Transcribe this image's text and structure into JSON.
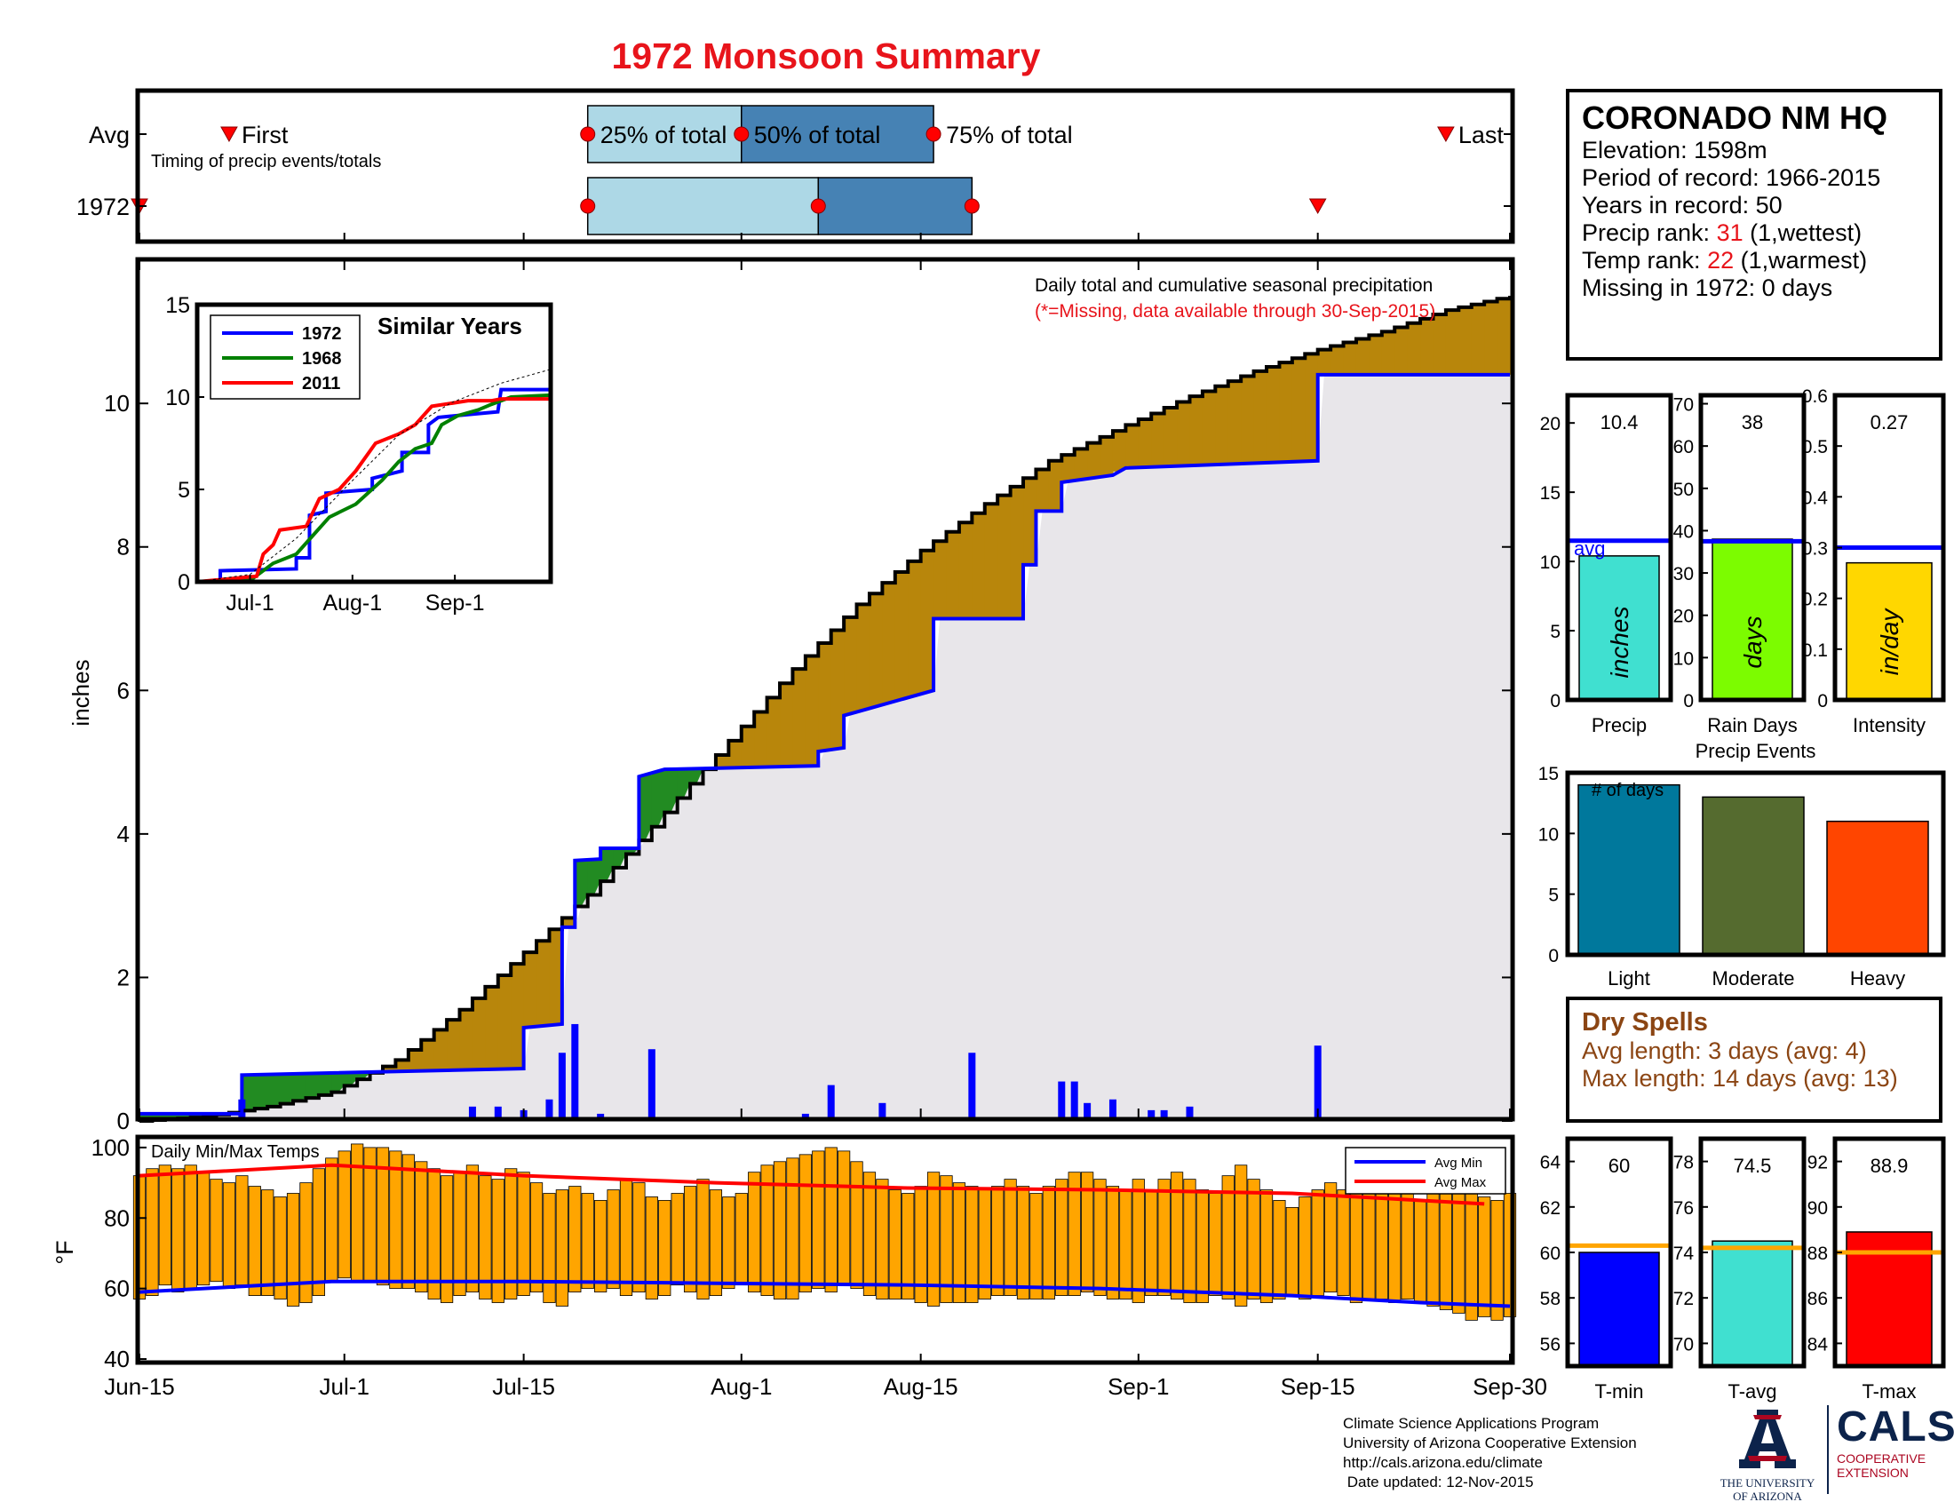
{
  "page": {
    "title": "1972 Monsoon Summary",
    "footer": {
      "line1": "Climate Science Applications Program",
      "line2": "University of Arizona Cooperative Extension",
      "line3": "http://cals.arizona.edu/climate",
      "line4": " Date updated: 12-Nov-2015"
    },
    "logos": {
      "ua_line1": "THE UNIVERSITY",
      "ua_line2": "OF ARIZONA",
      "cals_title": "CALS",
      "cals_line1": "COOPERATIVE",
      "cals_line2": "EXTENSION"
    },
    "colors": {
      "title_red": "#e8141b",
      "above_avg_fill": "#b8860b",
      "below_avg_fill": "#228b22",
      "year_line": "#0000ff",
      "temp_bar": "#ffa500",
      "avg_max_line": "#ff0000",
      "avg_min_line": "#0000ff"
    }
  },
  "station": {
    "name": "CORONADO NM HQ",
    "elevation": "Elevation: 1598m",
    "period": "Period of record: 1966-2015",
    "years": "Years in record: 50",
    "precip_rank_label": "Precip rank: ",
    "precip_rank_value": "31",
    "precip_rank_note": " (1,wettest)",
    "temp_rank_label": "Temp rank: ",
    "temp_rank_value": "22",
    "temp_rank_note": " (1,warmest)",
    "missing": "Missing in 1972: 0 days"
  },
  "dry_spells": {
    "title": "Dry Spells",
    "avg": "Avg length: 3 days (avg: 4)",
    "max": "Max length: 14 days (avg: 13)"
  },
  "chart_data": [
    {
      "id": "timing",
      "type": "bar",
      "rows": [
        "Avg",
        "1972"
      ],
      "label_first": "First",
      "label_last": "Last",
      "label_25": "25% of total",
      "label_50": "50% of total",
      "label_75": "75% of total",
      "note": "Timing of precip events/totals",
      "avg": {
        "first": "2023-06-22",
        "p25": "2023-07-20",
        "p50": "2023-08-01",
        "p75": "2023-08-16",
        "last": "2023-09-25"
      },
      "year": {
        "first": "2023-06-15",
        "p25": "2023-07-20",
        "p50": "2023-08-07",
        "p75": "2023-08-19",
        "last": "2023-09-15"
      }
    },
    {
      "id": "main",
      "type": "area",
      "ylabel": "inches",
      "title": "Daily total and cumulative seasonal precipitation",
      "subtitle": "(*=Missing, data available through 30-Sep-2015)",
      "ylim": [
        0,
        11.5
      ],
      "yticks": [
        0,
        2,
        4,
        6,
        8,
        10
      ],
      "xrange": [
        "2023-06-15",
        "2023-09-30"
      ],
      "xticks": [
        {
          "date": "2023-06-15",
          "label": "Jun-15"
        },
        {
          "date": "2023-07-01",
          "label": "Jul-1"
        },
        {
          "date": "2023-07-15",
          "label": "Jul-15"
        },
        {
          "date": "2023-08-01",
          "label": "Aug-1"
        },
        {
          "date": "2023-08-15",
          "label": "Aug-15"
        },
        {
          "date": "2023-09-01",
          "label": "Sep-1"
        },
        {
          "date": "2023-09-15",
          "label": "Sep-15"
        },
        {
          "date": "2023-09-30",
          "label": "Sep-30"
        }
      ],
      "avg_cumulative": [
        [
          "2023-06-15",
          0.0
        ],
        [
          "2023-06-20",
          0.06
        ],
        [
          "2023-06-25",
          0.2
        ],
        [
          "2023-06-30",
          0.4
        ],
        [
          "2023-07-05",
          0.85
        ],
        [
          "2023-07-10",
          1.55
        ],
        [
          "2023-07-15",
          2.35
        ],
        [
          "2023-07-20",
          3.15
        ],
        [
          "2023-07-25",
          4.1
        ],
        [
          "2023-07-31",
          5.3
        ],
        [
          "2023-08-05",
          6.3
        ],
        [
          "2023-08-10",
          7.2
        ],
        [
          "2023-08-15",
          7.95
        ],
        [
          "2023-08-20",
          8.6
        ],
        [
          "2023-08-25",
          9.2
        ],
        [
          "2023-08-31",
          9.7
        ],
        [
          "2023-09-05",
          10.1
        ],
        [
          "2023-09-10",
          10.45
        ],
        [
          "2023-09-15",
          10.75
        ],
        [
          "2023-09-20",
          11.0
        ],
        [
          "2023-09-25",
          11.3
        ],
        [
          "2023-09-30",
          11.5
        ]
      ],
      "year_cumulative": [
        [
          "2023-06-15",
          0.1
        ],
        [
          "2023-06-23",
          0.1
        ],
        [
          "2023-06-23",
          0.64
        ],
        [
          "2023-07-15",
          0.73
        ],
        [
          "2023-07-15",
          1.3
        ],
        [
          "2023-07-18",
          1.35
        ],
        [
          "2023-07-18",
          2.7
        ],
        [
          "2023-07-19",
          2.7
        ],
        [
          "2023-07-19",
          3.63
        ],
        [
          "2023-07-21",
          3.65
        ],
        [
          "2023-07-21",
          3.8
        ],
        [
          "2023-07-24",
          3.8
        ],
        [
          "2023-07-24",
          4.8
        ],
        [
          "2023-07-26",
          4.9
        ],
        [
          "2023-08-07",
          4.95
        ],
        [
          "2023-08-07",
          5.15
        ],
        [
          "2023-08-09",
          5.2
        ],
        [
          "2023-08-09",
          5.65
        ],
        [
          "2023-08-10",
          5.7
        ],
        [
          "2023-08-16",
          6.0
        ],
        [
          "2023-08-16",
          7.0
        ],
        [
          "2023-08-23",
          7.0
        ],
        [
          "2023-08-23",
          7.75
        ],
        [
          "2023-08-24",
          7.75
        ],
        [
          "2023-08-24",
          8.5
        ],
        [
          "2023-08-26",
          8.5
        ],
        [
          "2023-08-26",
          8.9
        ],
        [
          "2023-08-30",
          9.0
        ],
        [
          "2023-08-31",
          9.1
        ],
        [
          "2023-09-15",
          9.2
        ],
        [
          "2023-09-15",
          10.4
        ],
        [
          "2023-09-30",
          10.4
        ]
      ],
      "daily_bars": [
        [
          "2023-06-23",
          0.3
        ],
        [
          "2023-07-09",
          0.05
        ],
        [
          "2023-07-11",
          0.2
        ],
        [
          "2023-07-12",
          0.05
        ],
        [
          "2023-07-13",
          0.2
        ],
        [
          "2023-07-15",
          0.15
        ],
        [
          "2023-07-17",
          0.3
        ],
        [
          "2023-07-18",
          0.95
        ],
        [
          "2023-07-19",
          1.35
        ],
        [
          "2023-07-21",
          0.1
        ],
        [
          "2023-07-22",
          0.05
        ],
        [
          "2023-07-25",
          1.0
        ],
        [
          "2023-07-27",
          0.05
        ],
        [
          "2023-08-06",
          0.1
        ],
        [
          "2023-08-08",
          0.5
        ],
        [
          "2023-08-11",
          0.05
        ],
        [
          "2023-08-12",
          0.25
        ],
        [
          "2023-08-19",
          0.95
        ],
        [
          "2023-08-26",
          0.55
        ],
        [
          "2023-08-27",
          0.55
        ],
        [
          "2023-08-28",
          0.25
        ],
        [
          "2023-08-30",
          0.3
        ],
        [
          "2023-09-02",
          0.15
        ],
        [
          "2023-09-03",
          0.15
        ],
        [
          "2023-09-05",
          0.2
        ],
        [
          "2023-09-12",
          0.03
        ],
        [
          "2023-09-15",
          1.05
        ]
      ]
    },
    {
      "id": "similar_years",
      "type": "line",
      "title": "Similar Years",
      "ylim": [
        0,
        15
      ],
      "yticks": [
        0,
        5,
        10,
        15
      ],
      "xticks": [
        {
          "date": "2023-07-01",
          "label": "Jul-1"
        },
        {
          "date": "2023-08-01",
          "label": "Aug-1"
        },
        {
          "date": "2023-09-01",
          "label": "Sep-1"
        }
      ],
      "xrange": [
        "2023-06-15",
        "2023-09-30"
      ],
      "series": [
        {
          "name": "1972",
          "color": "#0000ff",
          "points": [
            [
              "2023-06-15",
              0
            ],
            [
              "2023-06-22",
              0
            ],
            [
              "2023-06-22",
              0.6
            ],
            [
              "2023-07-15",
              0.7
            ],
            [
              "2023-07-15",
              1.3
            ],
            [
              "2023-07-19",
              1.3
            ],
            [
              "2023-07-19",
              3.6
            ],
            [
              "2023-07-24",
              3.8
            ],
            [
              "2023-07-24",
              4.8
            ],
            [
              "2023-08-07",
              5.0
            ],
            [
              "2023-08-07",
              5.6
            ],
            [
              "2023-08-16",
              6.0
            ],
            [
              "2023-08-16",
              7.0
            ],
            [
              "2023-08-24",
              7.0
            ],
            [
              "2023-08-24",
              8.5
            ],
            [
              "2023-08-27",
              8.9
            ],
            [
              "2023-09-14",
              9.2
            ],
            [
              "2023-09-15",
              10.4
            ],
            [
              "2023-09-30",
              10.4
            ]
          ]
        },
        {
          "name": "1968",
          "color": "#008000",
          "points": [
            [
              "2023-06-15",
              0
            ],
            [
              "2023-07-02",
              0.2
            ],
            [
              "2023-07-08",
              1.0
            ],
            [
              "2023-07-15",
              1.5
            ],
            [
              "2023-07-20",
              2.5
            ],
            [
              "2023-07-25",
              3.5
            ],
            [
              "2023-08-02",
              4.2
            ],
            [
              "2023-08-10",
              5.5
            ],
            [
              "2023-08-15",
              6.5
            ],
            [
              "2023-08-20",
              7.2
            ],
            [
              "2023-08-25",
              7.5
            ],
            [
              "2023-08-28",
              8.5
            ],
            [
              "2023-09-02",
              9.0
            ],
            [
              "2023-09-08",
              9.3
            ],
            [
              "2023-09-12",
              9.6
            ],
            [
              "2023-09-18",
              10.0
            ],
            [
              "2023-09-30",
              10.1
            ]
          ]
        },
        {
          "name": "2011",
          "color": "#ff0000",
          "points": [
            [
              "2023-06-15",
              0
            ],
            [
              "2023-07-03",
              0.3
            ],
            [
              "2023-07-05",
              1.5
            ],
            [
              "2023-07-08",
              2.0
            ],
            [
              "2023-07-10",
              2.8
            ],
            [
              "2023-07-18",
              3.0
            ],
            [
              "2023-07-22",
              4.5
            ],
            [
              "2023-07-28",
              5.0
            ],
            [
              "2023-08-02",
              6.0
            ],
            [
              "2023-08-08",
              7.5
            ],
            [
              "2023-08-15",
              8.0
            ],
            [
              "2023-08-20",
              8.5
            ],
            [
              "2023-08-25",
              9.5
            ],
            [
              "2023-09-05",
              9.8
            ],
            [
              "2023-09-12",
              9.8
            ],
            [
              "2023-09-15",
              9.9
            ],
            [
              "2023-09-30",
              9.9
            ]
          ]
        },
        {
          "name": "avg",
          "color": "#000000",
          "points": [
            [
              "2023-06-15",
              0
            ],
            [
              "2023-07-01",
              0.4
            ],
            [
              "2023-07-15",
              2.35
            ],
            [
              "2023-07-31",
              5.3
            ],
            [
              "2023-08-15",
              7.95
            ],
            [
              "2023-08-31",
              9.7
            ],
            [
              "2023-09-15",
              10.75
            ],
            [
              "2023-09-30",
              11.5
            ]
          ]
        }
      ]
    },
    {
      "id": "temps",
      "type": "bar",
      "title": "Daily Min/Max Temps",
      "ylabel": "°F",
      "ylim": [
        39,
        103
      ],
      "yticks": [
        40,
        60,
        80,
        100
      ],
      "legend": [
        "Avg Min",
        "Avg Max"
      ],
      "legend_position": "top-right",
      "start": "2023-06-15",
      "daily_max": [
        92,
        94,
        95,
        94,
        95,
        93,
        91,
        90,
        92,
        89,
        88,
        86,
        87,
        90,
        94,
        97,
        99,
        101,
        100,
        100,
        99,
        98,
        96,
        94,
        92,
        93,
        95,
        92,
        91,
        94,
        93,
        90,
        87,
        88,
        89,
        87,
        85,
        88,
        91,
        90,
        86,
        85,
        87,
        89,
        91,
        88,
        86,
        87,
        93,
        95,
        96,
        97,
        98,
        99,
        100,
        99,
        96,
        93,
        91,
        88,
        87,
        89,
        93,
        92,
        90,
        89,
        88,
        89,
        91,
        89,
        87,
        89,
        91,
        93,
        93,
        91,
        89,
        88,
        91,
        88,
        91,
        93,
        91,
        88,
        87,
        92,
        95,
        91,
        88,
        85,
        83,
        86,
        88,
        90,
        88,
        87,
        89,
        90,
        87,
        88,
        85,
        87,
        89,
        88,
        87,
        86,
        85,
        87
      ],
      "daily_min": [
        57,
        58,
        61,
        59,
        60,
        61,
        62,
        60,
        61,
        58,
        58,
        57,
        55,
        56,
        58,
        62,
        63,
        62,
        62,
        61,
        60,
        60,
        59,
        57,
        56,
        58,
        59,
        57,
        56,
        57,
        58,
        59,
        56,
        55,
        59,
        60,
        59,
        60,
        58,
        59,
        57,
        58,
        61,
        59,
        57,
        58,
        60,
        61,
        59,
        58,
        57,
        57,
        59,
        60,
        59,
        61,
        60,
        58,
        57,
        57,
        57,
        56,
        55,
        56,
        56,
        56,
        57,
        58,
        58,
        57,
        57,
        57,
        58,
        58,
        59,
        58,
        57,
        57,
        56,
        58,
        58,
        57,
        56,
        56,
        58,
        57,
        55,
        57,
        56,
        57,
        58,
        57,
        58,
        59,
        58,
        56,
        57,
        57,
        56,
        57,
        56,
        55,
        54,
        53,
        51,
        52,
        51,
        52
      ],
      "avg_max": [
        [
          0,
          92
        ],
        [
          15,
          95
        ],
        [
          30,
          92
        ],
        [
          45,
          90
        ],
        [
          60,
          88.5
        ],
        [
          75,
          88
        ],
        [
          90,
          87
        ],
        [
          105,
          84
        ]
      ],
      "avg_min": [
        [
          0,
          59
        ],
        [
          15,
          62
        ],
        [
          30,
          62
        ],
        [
          45,
          61.5
        ],
        [
          60,
          61
        ],
        [
          75,
          60
        ],
        [
          90,
          58
        ],
        [
          100,
          56
        ],
        [
          107,
          55
        ]
      ]
    },
    {
      "id": "precip_summary",
      "type": "bar",
      "label": "Precip",
      "value": 10.4,
      "value_label": "10.4",
      "unit": "inches",
      "avg": 11.5,
      "avg_label": "avg",
      "ylim": [
        0,
        22
      ],
      "yticks": [
        0,
        5,
        10,
        15,
        20
      ],
      "color": "#40e0d0"
    },
    {
      "id": "rain_days",
      "type": "bar",
      "label": "Rain Days",
      "value": 38,
      "value_label": "38",
      "unit": "days",
      "avg": 37.5,
      "ylim": [
        0,
        72
      ],
      "yticks": [
        0,
        10,
        20,
        30,
        40,
        50,
        60,
        70
      ],
      "color": "#7cfc00"
    },
    {
      "id": "intensity",
      "type": "bar",
      "label": "Intensity",
      "value": 0.27,
      "value_label": "0.27",
      "unit": "in/day",
      "avg": 0.3,
      "ylim": [
        0,
        0.6
      ],
      "yticks": [
        "0",
        "0.1",
        "0.2",
        "0.3",
        "0.4",
        "0.5",
        "0.6"
      ],
      "color": "#ffd700"
    },
    {
      "id": "precip_events",
      "type": "bar",
      "title": "Precip Events",
      "ylabel": "# of days",
      "categories": [
        "Light",
        "Moderate",
        "Heavy"
      ],
      "values": [
        14,
        13,
        11
      ],
      "colors": [
        "#00789c",
        "#556b2f",
        "#ff4500"
      ],
      "ylim": [
        0,
        15
      ],
      "yticks": [
        0,
        5,
        10,
        15
      ]
    },
    {
      "id": "tmin",
      "type": "bar",
      "label": "T-min",
      "value": 60,
      "value_label": "60",
      "avg": 60.3,
      "ylim": [
        55,
        65
      ],
      "yticks": [
        56,
        58,
        60,
        62,
        64
      ],
      "color": "#0000ff"
    },
    {
      "id": "tavg",
      "type": "bar",
      "label": "T-avg",
      "value": 74.5,
      "value_label": "74.5",
      "avg": 74.2,
      "ylim": [
        69,
        79
      ],
      "yticks": [
        70,
        72,
        74,
        76,
        78
      ],
      "color": "#40e0d0"
    },
    {
      "id": "tmax",
      "type": "bar",
      "label": "T-max",
      "value": 88.9,
      "value_label": "88.9",
      "avg": 88,
      "ylim": [
        83,
        93
      ],
      "yticks": [
        84,
        86,
        88,
        90,
        92
      ],
      "color": "#ff0000"
    }
  ]
}
